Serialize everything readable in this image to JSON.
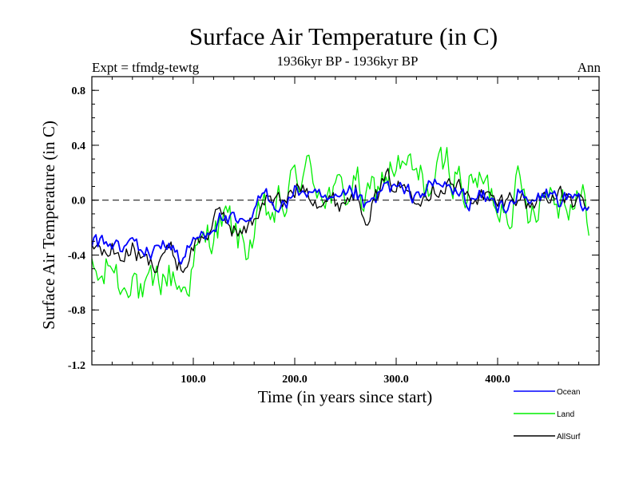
{
  "chart_data": {
    "type": "line",
    "title": "Surface Air Temperature (in C)",
    "subtitle_left": "Expt = tfmdg-tewtg",
    "subtitle_center": "1936kyr BP - 1936kyr BP",
    "subtitle_right": "Ann",
    "xlabel": "Time (in years since start)",
    "ylabel": "Surface Air Temperature (in C)",
    "xlim": [
      0,
      500
    ],
    "ylim": [
      -1.2,
      0.9
    ],
    "x_ticks": [
      100,
      200,
      300,
      400
    ],
    "x_tick_labels": [
      "100.0",
      "200.0",
      "300.0",
      "400.0"
    ],
    "y_ticks": [
      -1.2,
      -0.8,
      -0.4,
      0.0,
      0.4,
      0.8
    ],
    "y_tick_labels": [
      "-1.2",
      "-0.8",
      "-0.4",
      "0.0",
      "0.4",
      "0.8"
    ],
    "reference_line": 0.0,
    "legend": [
      "Ocean",
      "Land",
      "AllSurf"
    ],
    "colors": {
      "Ocean": "#0000ff",
      "Land": "#00ee00",
      "AllSurf": "#000000",
      "axis": "#000000"
    },
    "x_step": 10,
    "series": [
      {
        "name": "Land",
        "color": "#00ee00",
        "values": [
          -0.55,
          -0.6,
          -0.45,
          -0.65,
          -0.45,
          -0.75,
          -0.7,
          -0.55,
          -0.55,
          -0.65,
          -0.45,
          -0.35,
          -0.2,
          -0.15,
          -0.25,
          -0.35,
          -0.25,
          -0.15,
          -0.1,
          -0.05,
          0.15,
          0.2,
          0.15,
          0.1,
          0.0,
          0.05,
          0.15,
          -0.05,
          0.05,
          0.2,
          0.25,
          0.2,
          0.15,
          0.1,
          0.15,
          0.25,
          0.2,
          0.05,
          0.15,
          0.05,
          0.0,
          0.0,
          0.1,
          -0.05,
          0.05,
          0.1,
          0.05,
          0.05,
          0.0,
          -0.1
        ]
      },
      {
        "name": "Ocean",
        "color": "#0000ff",
        "values": [
          -0.3,
          -0.33,
          -0.3,
          -0.38,
          -0.3,
          -0.36,
          -0.4,
          -0.28,
          -0.35,
          -0.45,
          -0.3,
          -0.25,
          -0.15,
          -0.12,
          -0.18,
          -0.22,
          -0.1,
          0.05,
          0.0,
          -0.03,
          0.05,
          0.08,
          0.0,
          -0.02,
          -0.05,
          0.0,
          0.05,
          -0.08,
          0.0,
          0.1,
          0.08,
          0.03,
          0.05,
          0.08,
          0.1,
          0.1,
          0.05,
          0.0,
          0.02,
          0.0,
          -0.05,
          -0.02,
          0.05,
          -0.05,
          0.0,
          0.05,
          0.0,
          0.0,
          -0.05,
          -0.08
        ]
      },
      {
        "name": "AllSurf",
        "color": "#000000",
        "values": [
          -0.35,
          -0.4,
          -0.35,
          -0.42,
          -0.35,
          -0.45,
          -0.48,
          -0.35,
          -0.4,
          -0.5,
          -0.33,
          -0.27,
          -0.16,
          -0.12,
          -0.2,
          -0.25,
          -0.14,
          0.03,
          -0.02,
          -0.03,
          0.08,
          0.11,
          0.04,
          0.01,
          -0.03,
          0.01,
          0.08,
          -0.07,
          0.01,
          0.13,
          0.12,
          0.07,
          0.08,
          0.09,
          0.11,
          0.14,
          0.09,
          0.01,
          0.05,
          0.01,
          -0.04,
          -0.01,
          0.07,
          -0.05,
          0.01,
          0.07,
          0.01,
          0.01,
          -0.04,
          -0.09
        ]
      }
    ]
  }
}
